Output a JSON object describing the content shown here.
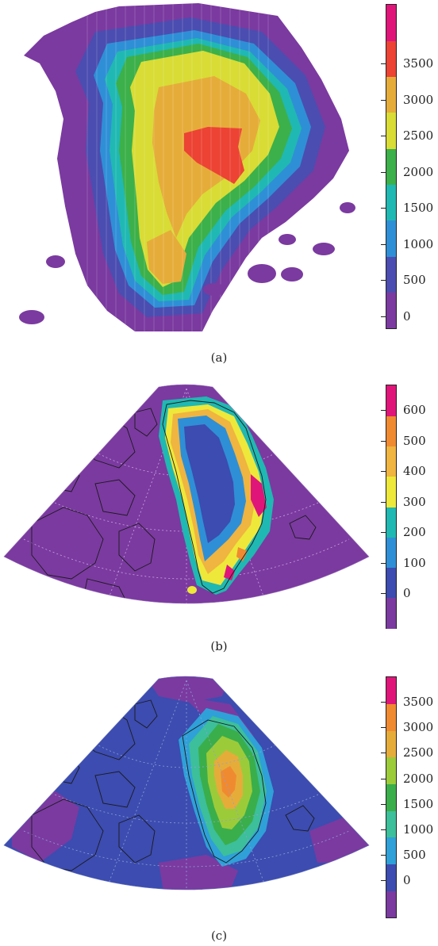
{
  "panels": [
    {
      "caption": "(a)",
      "ticks": [
        "3500",
        "3000",
        "2500",
        "2000",
        "1500",
        "1000",
        "500",
        "0"
      ],
      "colors": [
        "#7b3aa0",
        "#4b4db0",
        "#2f8fd6",
        "#20b8b2",
        "#3cb04a",
        "#d8dc35",
        "#e6ac3a",
        "#ec4334",
        "#e0157a"
      ]
    },
    {
      "caption": "(b)",
      "ticks": [
        "600",
        "500",
        "400",
        "300",
        "200",
        "100",
        "0"
      ],
      "colors": [
        "#7b3aa0",
        "#3c4cb0",
        "#2f8fd6",
        "#20b8b2",
        "#eee83a",
        "#f0b440",
        "#f08a30",
        "#e0157a"
      ]
    },
    {
      "caption": "(c)",
      "ticks": [
        "3500",
        "3000",
        "2500",
        "2000",
        "1500",
        "1000",
        "500",
        "0"
      ],
      "colors": [
        "#7b3aa0",
        "#3c4cb0",
        "#2fa0d8",
        "#3cbf9a",
        "#3aae4a",
        "#9ccb3a",
        "#e6ac3a",
        "#f08a30",
        "#e0157a"
      ]
    }
  ]
}
